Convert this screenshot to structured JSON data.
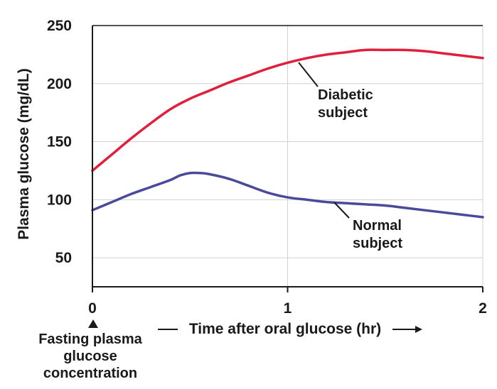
{
  "chart_data": {
    "type": "line",
    "xlabel": "Time after oral glucose (hr)",
    "ylabel": "Plasma glucose (mg/dL)",
    "xlim": [
      0,
      2
    ],
    "ylim": [
      25,
      250
    ],
    "x_ticks": [
      "0",
      "1",
      "2"
    ],
    "y_ticks": [
      "50",
      "100",
      "150",
      "200",
      "250"
    ],
    "grid": "horizontal and vertical, light gray",
    "series": [
      {
        "name": "Diabetic subject",
        "color": "#e01f3d",
        "x": [
          0,
          0.1,
          0.2,
          0.3,
          0.4,
          0.5,
          0.6,
          0.7,
          0.8,
          0.9,
          1.0,
          1.1,
          1.2,
          1.3,
          1.4,
          1.5,
          1.6,
          1.7,
          1.8,
          1.9,
          2.0
        ],
        "y": [
          125,
          139,
          153,
          166,
          178,
          187,
          194,
          201,
          207,
          213,
          218,
          222,
          225,
          227,
          229,
          229,
          229,
          228,
          226,
          224,
          222
        ]
      },
      {
        "name": "Normal subject",
        "color": "#4a4a9c",
        "x": [
          0,
          0.1,
          0.2,
          0.3,
          0.4,
          0.45,
          0.5,
          0.55,
          0.6,
          0.7,
          0.8,
          0.9,
          1.0,
          1.1,
          1.2,
          1.3,
          1.4,
          1.5,
          1.6,
          1.7,
          1.8,
          1.9,
          2.0
        ],
        "y": [
          91,
          98,
          105,
          111,
          117,
          121,
          123,
          123,
          122,
          118,
          112,
          106,
          102,
          100,
          98,
          97,
          96,
          95,
          93,
          91,
          89,
          87,
          85
        ]
      }
    ],
    "annotations": {
      "diabetic": "Diabetic\nsubject",
      "normal": "Normal\nsubject",
      "fasting": "Fasting plasma\nglucose\nconcentration"
    }
  }
}
